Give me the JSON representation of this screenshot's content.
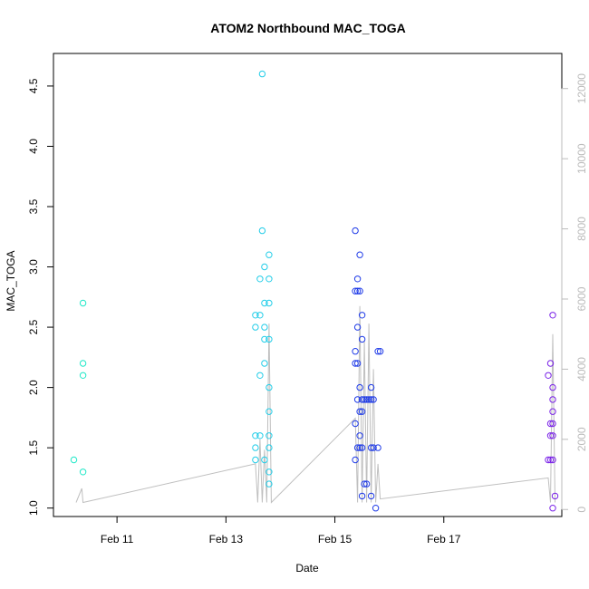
{
  "chart_data": {
    "type": "scatter",
    "title": "ATOM2 Northbound MAC_TOGA",
    "xlabel": "Date",
    "ylabel": "MAC_TOGA",
    "x_unit": "date (2024)",
    "xlim": [
      "2024-02-09T20:00",
      "2024-02-19T04:00"
    ],
    "ylim": [
      0.93,
      4.77
    ],
    "x_ticks": [
      {
        "value": "2024-02-11T00:00",
        "label": "Feb 11"
      },
      {
        "value": "2024-02-13T00:00",
        "label": "Feb 13"
      },
      {
        "value": "2024-02-15T00:00",
        "label": "Feb 15"
      },
      {
        "value": "2024-02-17T00:00",
        "label": "Feb 17"
      }
    ],
    "y_ticks": [
      1.0,
      1.5,
      2.0,
      2.5,
      3.0,
      3.5,
      4.0,
      4.5
    ],
    "y_tick_labels": [
      "1.0",
      "1.5",
      "2.0",
      "2.5",
      "3.0",
      "3.5",
      "4.0",
      "4.5"
    ],
    "y2_lim": [
      -200,
      13000
    ],
    "y2_ticks": [
      0,
      2000,
      4000,
      6000,
      8000,
      10000,
      12000
    ],
    "y2_tick_labels": [
      "0",
      "2000",
      "4000",
      "6000",
      "8000",
      "10000",
      "12000"
    ],
    "colors": {
      "line": "#bfbfbf",
      "axis_right": "#bbbbbb",
      "teal": "#1fe8c8",
      "cyan": "#22cde8",
      "blue": "#1f3be8",
      "purple": "#7a22e8"
    },
    "series": [
      {
        "color": "teal",
        "points": [
          {
            "x": "2024-02-10T05:00",
            "y": 1.4
          },
          {
            "x": "2024-02-10T09:00",
            "y": 2.7
          },
          {
            "x": "2024-02-10T09:00",
            "y": 2.2
          },
          {
            "x": "2024-02-10T09:00",
            "y": 2.1
          },
          {
            "x": "2024-02-10T09:00",
            "y": 1.3
          }
        ]
      },
      {
        "color": "cyan",
        "points": [
          {
            "x": "2024-02-13T13:00",
            "y": 2.6
          },
          {
            "x": "2024-02-13T13:00",
            "y": 2.5
          },
          {
            "x": "2024-02-13T13:00",
            "y": 1.6
          },
          {
            "x": "2024-02-13T13:00",
            "y": 1.5
          },
          {
            "x": "2024-02-13T13:00",
            "y": 1.4
          },
          {
            "x": "2024-02-13T15:00",
            "y": 2.6
          },
          {
            "x": "2024-02-13T15:00",
            "y": 2.9
          },
          {
            "x": "2024-02-13T15:00",
            "y": 2.1
          },
          {
            "x": "2024-02-13T15:00",
            "y": 1.6
          },
          {
            "x": "2024-02-13T16:00",
            "y": 4.6
          },
          {
            "x": "2024-02-13T16:00",
            "y": 3.3
          },
          {
            "x": "2024-02-13T17:00",
            "y": 3.0
          },
          {
            "x": "2024-02-13T17:00",
            "y": 2.7
          },
          {
            "x": "2024-02-13T17:00",
            "y": 2.5
          },
          {
            "x": "2024-02-13T17:00",
            "y": 2.4
          },
          {
            "x": "2024-02-13T17:00",
            "y": 2.2
          },
          {
            "x": "2024-02-13T17:00",
            "y": 1.4
          },
          {
            "x": "2024-02-13T19:00",
            "y": 3.1
          },
          {
            "x": "2024-02-13T19:00",
            "y": 2.9
          },
          {
            "x": "2024-02-13T19:00",
            "y": 2.7
          },
          {
            "x": "2024-02-13T19:00",
            "y": 2.4
          },
          {
            "x": "2024-02-13T19:00",
            "y": 2.0
          },
          {
            "x": "2024-02-13T19:00",
            "y": 1.8
          },
          {
            "x": "2024-02-13T19:00",
            "y": 1.6
          },
          {
            "x": "2024-02-13T19:00",
            "y": 1.5
          },
          {
            "x": "2024-02-13T19:00",
            "y": 1.3
          },
          {
            "x": "2024-02-13T19:00",
            "y": 1.2
          }
        ]
      },
      {
        "color": "blue",
        "points": [
          {
            "x": "2024-02-15T09:00",
            "y": 3.3
          },
          {
            "x": "2024-02-15T09:00",
            "y": 2.8
          },
          {
            "x": "2024-02-15T09:00",
            "y": 2.3
          },
          {
            "x": "2024-02-15T09:00",
            "y": 2.2
          },
          {
            "x": "2024-02-15T09:00",
            "y": 1.7
          },
          {
            "x": "2024-02-15T09:00",
            "y": 1.4
          },
          {
            "x": "2024-02-15T10:00",
            "y": 2.9
          },
          {
            "x": "2024-02-15T10:00",
            "y": 2.8
          },
          {
            "x": "2024-02-15T10:00",
            "y": 2.5
          },
          {
            "x": "2024-02-15T10:00",
            "y": 2.2
          },
          {
            "x": "2024-02-15T10:00",
            "y": 1.9
          },
          {
            "x": "2024-02-15T10:00",
            "y": 1.5
          },
          {
            "x": "2024-02-15T11:00",
            "y": 3.1
          },
          {
            "x": "2024-02-15T11:00",
            "y": 2.8
          },
          {
            "x": "2024-02-15T11:00",
            "y": 2.0
          },
          {
            "x": "2024-02-15T11:00",
            "y": 1.8
          },
          {
            "x": "2024-02-15T11:00",
            "y": 1.6
          },
          {
            "x": "2024-02-15T11:00",
            "y": 1.5
          },
          {
            "x": "2024-02-15T12:00",
            "y": 2.6
          },
          {
            "x": "2024-02-15T12:00",
            "y": 2.4
          },
          {
            "x": "2024-02-15T12:00",
            "y": 1.9
          },
          {
            "x": "2024-02-15T12:00",
            "y": 1.8
          },
          {
            "x": "2024-02-15T12:00",
            "y": 1.5
          },
          {
            "x": "2024-02-15T12:00",
            "y": 1.1
          },
          {
            "x": "2024-02-15T13:00",
            "y": 1.9
          },
          {
            "x": "2024-02-15T13:00",
            "y": 1.2
          },
          {
            "x": "2024-02-15T14:00",
            "y": 1.9
          },
          {
            "x": "2024-02-15T14:00",
            "y": 1.2
          },
          {
            "x": "2024-02-15T15:00",
            "y": 1.9
          },
          {
            "x": "2024-02-15T16:00",
            "y": 2.0
          },
          {
            "x": "2024-02-15T16:00",
            "y": 1.9
          },
          {
            "x": "2024-02-15T16:00",
            "y": 1.5
          },
          {
            "x": "2024-02-15T16:00",
            "y": 1.1
          },
          {
            "x": "2024-02-15T17:00",
            "y": 1.9
          },
          {
            "x": "2024-02-15T17:00",
            "y": 1.5
          },
          {
            "x": "2024-02-15T18:00",
            "y": 1.0
          },
          {
            "x": "2024-02-15T19:00",
            "y": 1.5
          },
          {
            "x": "2024-02-15T19:00",
            "y": 2.3
          },
          {
            "x": "2024-02-15T20:00",
            "y": 2.3
          }
        ]
      },
      {
        "color": "purple",
        "points": [
          {
            "x": "2024-02-18T22:00",
            "y": 2.1
          },
          {
            "x": "2024-02-18T22:00",
            "y": 1.4
          },
          {
            "x": "2024-02-18T23:00",
            "y": 2.2
          },
          {
            "x": "2024-02-18T23:00",
            "y": 1.7
          },
          {
            "x": "2024-02-18T23:00",
            "y": 1.6
          },
          {
            "x": "2024-02-18T23:00",
            "y": 1.4
          },
          {
            "x": "2024-02-19T00:00",
            "y": 2.6
          },
          {
            "x": "2024-02-19T00:00",
            "y": 2.0
          },
          {
            "x": "2024-02-19T00:00",
            "y": 1.9
          },
          {
            "x": "2024-02-19T00:00",
            "y": 1.8
          },
          {
            "x": "2024-02-19T00:00",
            "y": 1.7
          },
          {
            "x": "2024-02-19T00:00",
            "y": 1.6
          },
          {
            "x": "2024-02-19T00:00",
            "y": 1.4
          },
          {
            "x": "2024-02-19T00:00",
            "y": 1.0
          },
          {
            "x": "2024-02-19T01:00",
            "y": 1.1
          }
        ]
      }
    ],
    "secondary_line": {
      "color": "line",
      "axis": "right",
      "points": [
        {
          "x": "2024-02-10T06:00",
          "y": 200
        },
        {
          "x": "2024-02-10T08:30",
          "y": 600
        },
        {
          "x": "2024-02-10T09:00",
          "y": 200
        },
        {
          "x": "2024-02-13T13:00",
          "y": 1300
        },
        {
          "x": "2024-02-13T14:00",
          "y": 200
        },
        {
          "x": "2024-02-13T15:00",
          "y": 2000
        },
        {
          "x": "2024-02-13T16:00",
          "y": 200
        },
        {
          "x": "2024-02-13T17:00",
          "y": 1700
        },
        {
          "x": "2024-02-13T18:00",
          "y": 200
        },
        {
          "x": "2024-02-13T19:00",
          "y": 5300
        },
        {
          "x": "2024-02-13T20:00",
          "y": 200
        },
        {
          "x": "2024-02-15T09:00",
          "y": 2600
        },
        {
          "x": "2024-02-15T10:00",
          "y": 200
        },
        {
          "x": "2024-02-15T11:00",
          "y": 5800
        },
        {
          "x": "2024-02-15T12:00",
          "y": 200
        },
        {
          "x": "2024-02-15T13:00",
          "y": 4800
        },
        {
          "x": "2024-02-15T14:00",
          "y": 200
        },
        {
          "x": "2024-02-15T15:00",
          "y": 5300
        },
        {
          "x": "2024-02-15T16:00",
          "y": 200
        },
        {
          "x": "2024-02-15T17:00",
          "y": 4000
        },
        {
          "x": "2024-02-15T18:00",
          "y": 200
        },
        {
          "x": "2024-02-15T19:00",
          "y": 1300
        },
        {
          "x": "2024-02-15T20:00",
          "y": 300
        },
        {
          "x": "2024-02-18T22:00",
          "y": 900
        },
        {
          "x": "2024-02-18T23:00",
          "y": 200
        },
        {
          "x": "2024-02-19T00:00",
          "y": 5000
        },
        {
          "x": "2024-02-19T01:00",
          "y": 200
        }
      ]
    },
    "grid": false,
    "legend": "none"
  }
}
